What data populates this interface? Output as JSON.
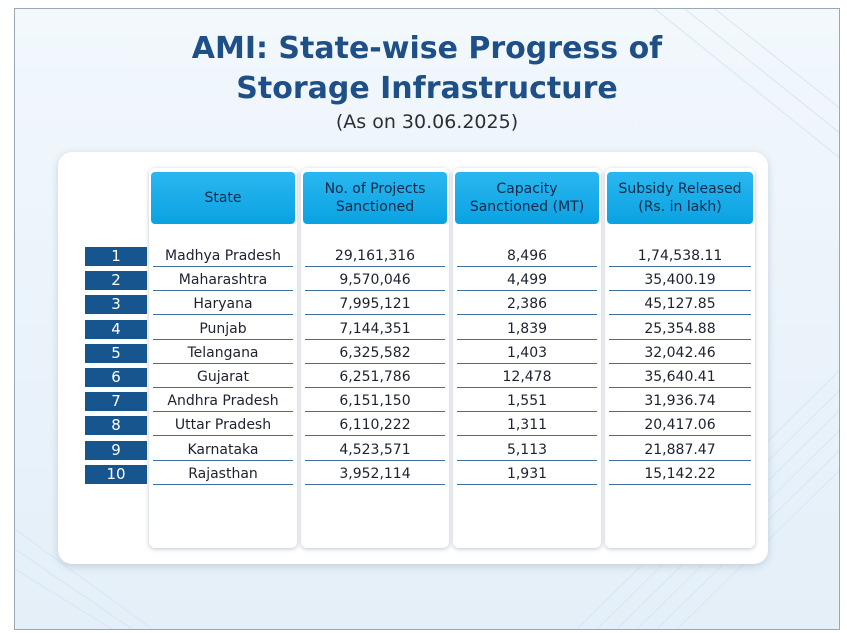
{
  "title": {
    "line1": "AMI: State-wise Progress of",
    "line2": "Storage Infrastructure"
  },
  "subtitle": "(As on 30.06.2025)",
  "colors": {
    "title": "#1f4f87",
    "header_fill": "#0aa2e2",
    "number_fill": "#17558f"
  },
  "chart_data": {
    "type": "table",
    "title": "AMI: State-wise Progress of Storage Infrastructure",
    "subtitle": "(As on 30.06.2025)",
    "columns": [
      "State",
      "No. of Projects\nSanctioned",
      "Capacity\nSanctioned (MT)",
      "Subsidy Released\n(Rs. in lakh)"
    ],
    "rows": [
      {
        "no": "1",
        "state": "Madhya Pradesh",
        "projects": "29,161,316",
        "capacity": "8,496",
        "subsidy": "1,74,538.11"
      },
      {
        "no": "2",
        "state": "Maharashtra",
        "projects": "9,570,046",
        "capacity": "4,499",
        "subsidy": "35,400.19"
      },
      {
        "no": "3",
        "state": "Haryana",
        "projects": "7,995,121",
        "capacity": "2,386",
        "subsidy": "45,127.85"
      },
      {
        "no": "4",
        "state": "Punjab",
        "projects": "7,144,351",
        "capacity": "1,839",
        "subsidy": "25,354.88"
      },
      {
        "no": "5",
        "state": "Telangana",
        "projects": "6,325,582",
        "capacity": "1,403",
        "subsidy": "32,042.46"
      },
      {
        "no": "6",
        "state": "Gujarat",
        "projects": "6,251,786",
        "capacity": "12,478",
        "subsidy": "35,640.41"
      },
      {
        "no": "7",
        "state": "Andhra Pradesh",
        "projects": "6,151,150",
        "capacity": "1,551",
        "subsidy": "31,936.74"
      },
      {
        "no": "8",
        "state": "Uttar Pradesh",
        "projects": "6,110,222",
        "capacity": "1,311",
        "subsidy": "20,417.06"
      },
      {
        "no": "9",
        "state": "Karnataka",
        "projects": "4,523,571",
        "capacity": "5,113",
        "subsidy": "21,887.47"
      },
      {
        "no": "10",
        "state": "Rajasthan",
        "projects": "3,952,114",
        "capacity": "1,931",
        "subsidy": "15,142.22"
      }
    ]
  }
}
